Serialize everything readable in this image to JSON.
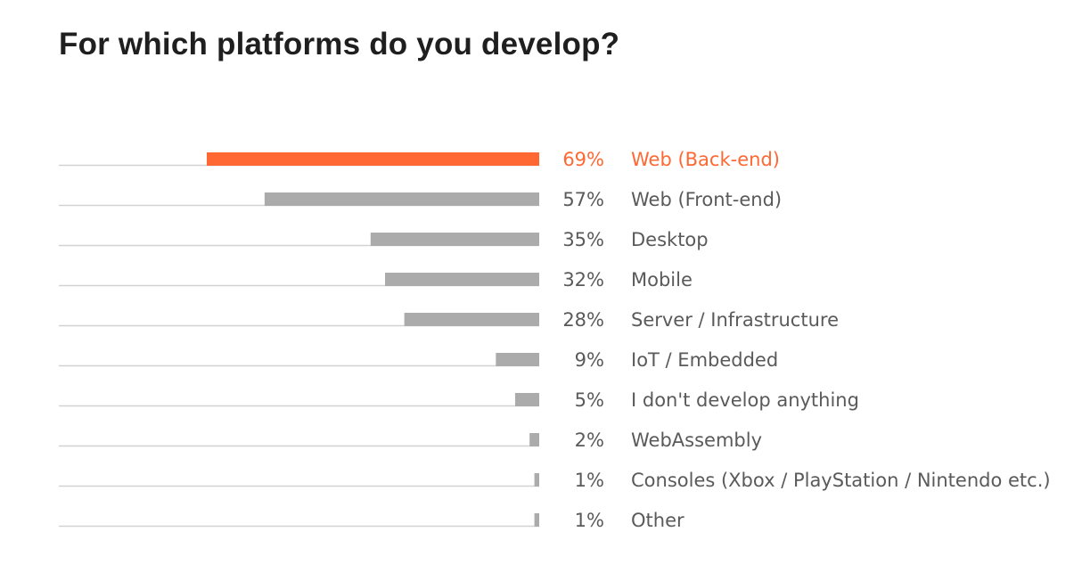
{
  "chart_data": {
    "type": "bar",
    "orientation": "horizontal",
    "title": "For which platforms do you develop?",
    "categories": [
      "Web (Back-end)",
      "Web (Front-end)",
      "Desktop",
      "Mobile",
      "Server / Infrastructure",
      "IoT / Embedded",
      "I don't develop anything",
      "WebAssembly",
      "Consoles (Xbox / PlayStation / Nintendo etc.)",
      "Other"
    ],
    "values": [
      69,
      57,
      35,
      32,
      28,
      9,
      5,
      2,
      1,
      1
    ],
    "value_labels": [
      "69%",
      "57%",
      "35%",
      "32%",
      "28%",
      "9%",
      "5%",
      "2%",
      "1%",
      "1%"
    ],
    "highlight_index": 0,
    "xlim": [
      0,
      100
    ],
    "grid": false,
    "legend": "none",
    "colors": {
      "highlight": "#ff6833",
      "bar": "#ababab",
      "baseline": "#d2d2d2",
      "text": "#5a5a5a",
      "title": "#1f1f1f"
    }
  }
}
